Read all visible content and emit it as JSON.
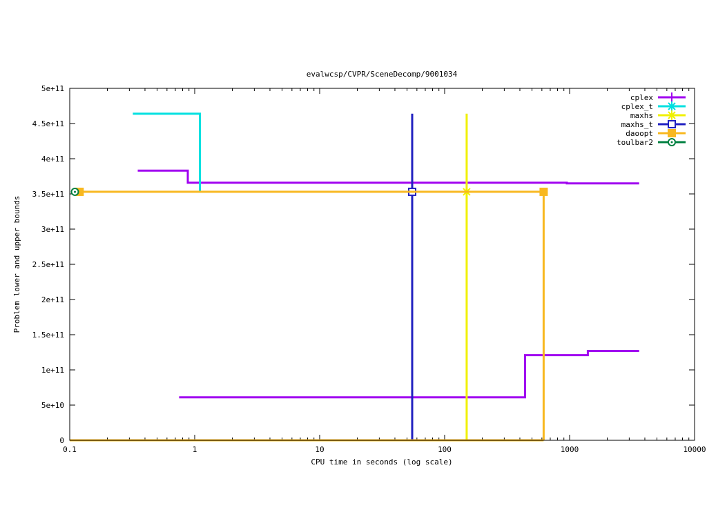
{
  "chart_data": {
    "type": "line",
    "title": "evalwcsp/CVPR/SceneDecomp/9001034",
    "xlabel": "CPU time in seconds (log scale)",
    "ylabel": "Problem lower and upper bounds",
    "xscale": "log",
    "xlim": [
      0.1,
      10000
    ],
    "ylim": [
      0,
      500000000000
    ],
    "xticks": [
      "0.1",
      "1",
      "10",
      "100",
      "1000",
      "10000"
    ],
    "xtick_values": [
      0.1,
      1,
      10,
      100,
      1000,
      10000
    ],
    "yticks": [
      "0",
      "5e+10",
      "1e+11",
      "1.5e+11",
      "2e+11",
      "2.5e+11",
      "3e+11",
      "3.5e+11",
      "4e+11",
      "4.5e+11",
      "5e+11"
    ],
    "ytick_values": [
      0,
      50000000000,
      100000000000,
      150000000000,
      200000000000,
      250000000000,
      300000000000,
      350000000000,
      400000000000,
      450000000000,
      500000000000
    ],
    "grid": false,
    "legend_position": "top-right",
    "series": [
      {
        "name": "cplex",
        "color": "#a000f0",
        "marker": "plus",
        "segments": [
          [
            [
              0.35,
              383000000000
            ],
            [
              0.88,
              383000000000
            ],
            [
              0.88,
              366000000000
            ],
            [
              950,
              366000000000
            ],
            [
              950,
              365000000000
            ],
            [
              3600,
              365000000000
            ]
          ],
          [
            [
              0.75,
              61000000000
            ],
            [
              440,
              61000000000
            ],
            [
              440,
              121000000000
            ],
            [
              1400,
              121000000000
            ],
            [
              1400,
              127000000000
            ],
            [
              3600,
              127000000000
            ]
          ]
        ],
        "points": []
      },
      {
        "name": "cplex_t",
        "color": "#00e0e0",
        "marker": "star",
        "segments": [
          [
            [
              0.32,
              464000000000
            ],
            [
              1.1,
              464000000000
            ],
            [
              1.1,
              353000000000
            ]
          ]
        ],
        "points": []
      },
      {
        "name": "maxhs",
        "color": "#f0f000",
        "marker": "star",
        "segments": [
          [
            [
              150,
              464000000000
            ],
            [
              150,
              0
            ]
          ]
        ],
        "points": [
          [
            150,
            353000000000
          ]
        ]
      },
      {
        "name": "maxhs_t",
        "color": "#2020c0",
        "marker": "square-open",
        "segments": [
          [
            [
              55,
              464000000000
            ],
            [
              55,
              0
            ]
          ]
        ],
        "points": [
          [
            55,
            353000000000
          ]
        ]
      },
      {
        "name": "daoopt",
        "color": "#f8b820",
        "marker": "square-filled",
        "segments": [
          [
            [
              0.12,
              353000000000
            ],
            [
              620,
              353000000000
            ],
            [
              620,
              0
            ]
          ],
          [
            [
              0.1,
              0
            ],
            [
              620,
              0
            ]
          ]
        ],
        "points": [
          [
            0.12,
            353000000000
          ],
          [
            620,
            353000000000
          ]
        ]
      },
      {
        "name": "toulbar2",
        "color": "#008040",
        "marker": "circle",
        "segments": [],
        "points": [
          [
            0.11,
            353000000000
          ]
        ]
      }
    ]
  }
}
